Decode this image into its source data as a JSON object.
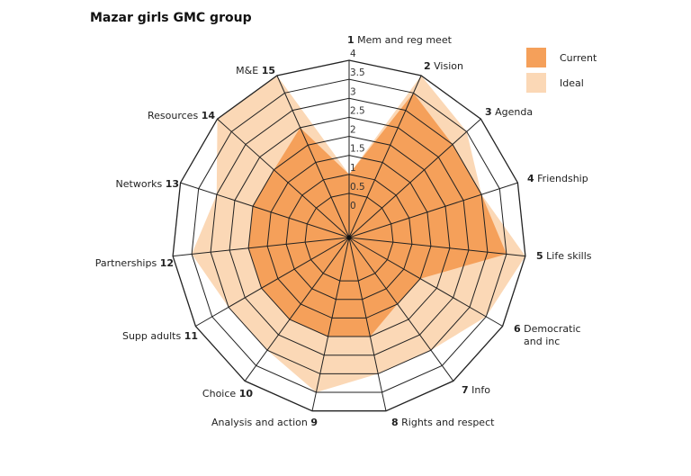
{
  "title": "Mazar girls GMC group",
  "chart_data": {
    "type": "radar",
    "title": "Mazar girls GMC group",
    "range": [
      0,
      4
    ],
    "ticks": [
      "0",
      "0.5",
      "1",
      "1.5",
      "2",
      "2.5",
      "3",
      "3.5",
      "4"
    ],
    "tick_values": [
      0,
      0.5,
      1,
      1.5,
      2,
      2.5,
      3,
      3.5,
      4
    ],
    "grid": true,
    "legend_position": "top-right",
    "axes": [
      {
        "num": "1",
        "label": "Mem and reg meet"
      },
      {
        "num": "2",
        "label": "Vision"
      },
      {
        "num": "3",
        "label": "Agenda"
      },
      {
        "num": "4",
        "label": "Friendship"
      },
      {
        "num": "5",
        "label": "Life skills"
      },
      {
        "num": "6",
        "label": "Democratic",
        "label2": "and inc"
      },
      {
        "num": "7",
        "label": "Info"
      },
      {
        "num": "8",
        "label": "Rights and respect"
      },
      {
        "num": "9",
        "label": "Analysis and  action"
      },
      {
        "num": "10",
        "label": "Choice"
      },
      {
        "num": "11",
        "label": "Supp adults"
      },
      {
        "num": "12",
        "label": "Partnerships"
      },
      {
        "num": "13",
        "label": "Networks"
      },
      {
        "num": "14",
        "label": "Resources"
      },
      {
        "num": "15",
        "label": "M&E"
      }
    ],
    "series": [
      {
        "name": "Ideal",
        "color": "#FBD8B6",
        "values": [
          1,
          4,
          3.5,
          3,
          4,
          3.5,
          3,
          3,
          3.5,
          3,
          3,
          3.5,
          3,
          4,
          4
        ]
      },
      {
        "name": "Current",
        "color": "#F5A05A",
        "values": [
          1,
          3.5,
          3,
          3,
          3.5,
          1.5,
          1.5,
          2,
          2,
          2,
          2,
          2,
          2,
          2,
          2.5
        ]
      }
    ],
    "legend": [
      {
        "name": "Current",
        "color": "#F5A05A"
      },
      {
        "name": "Ideal",
        "color": "#FBD8B6"
      }
    ]
  }
}
